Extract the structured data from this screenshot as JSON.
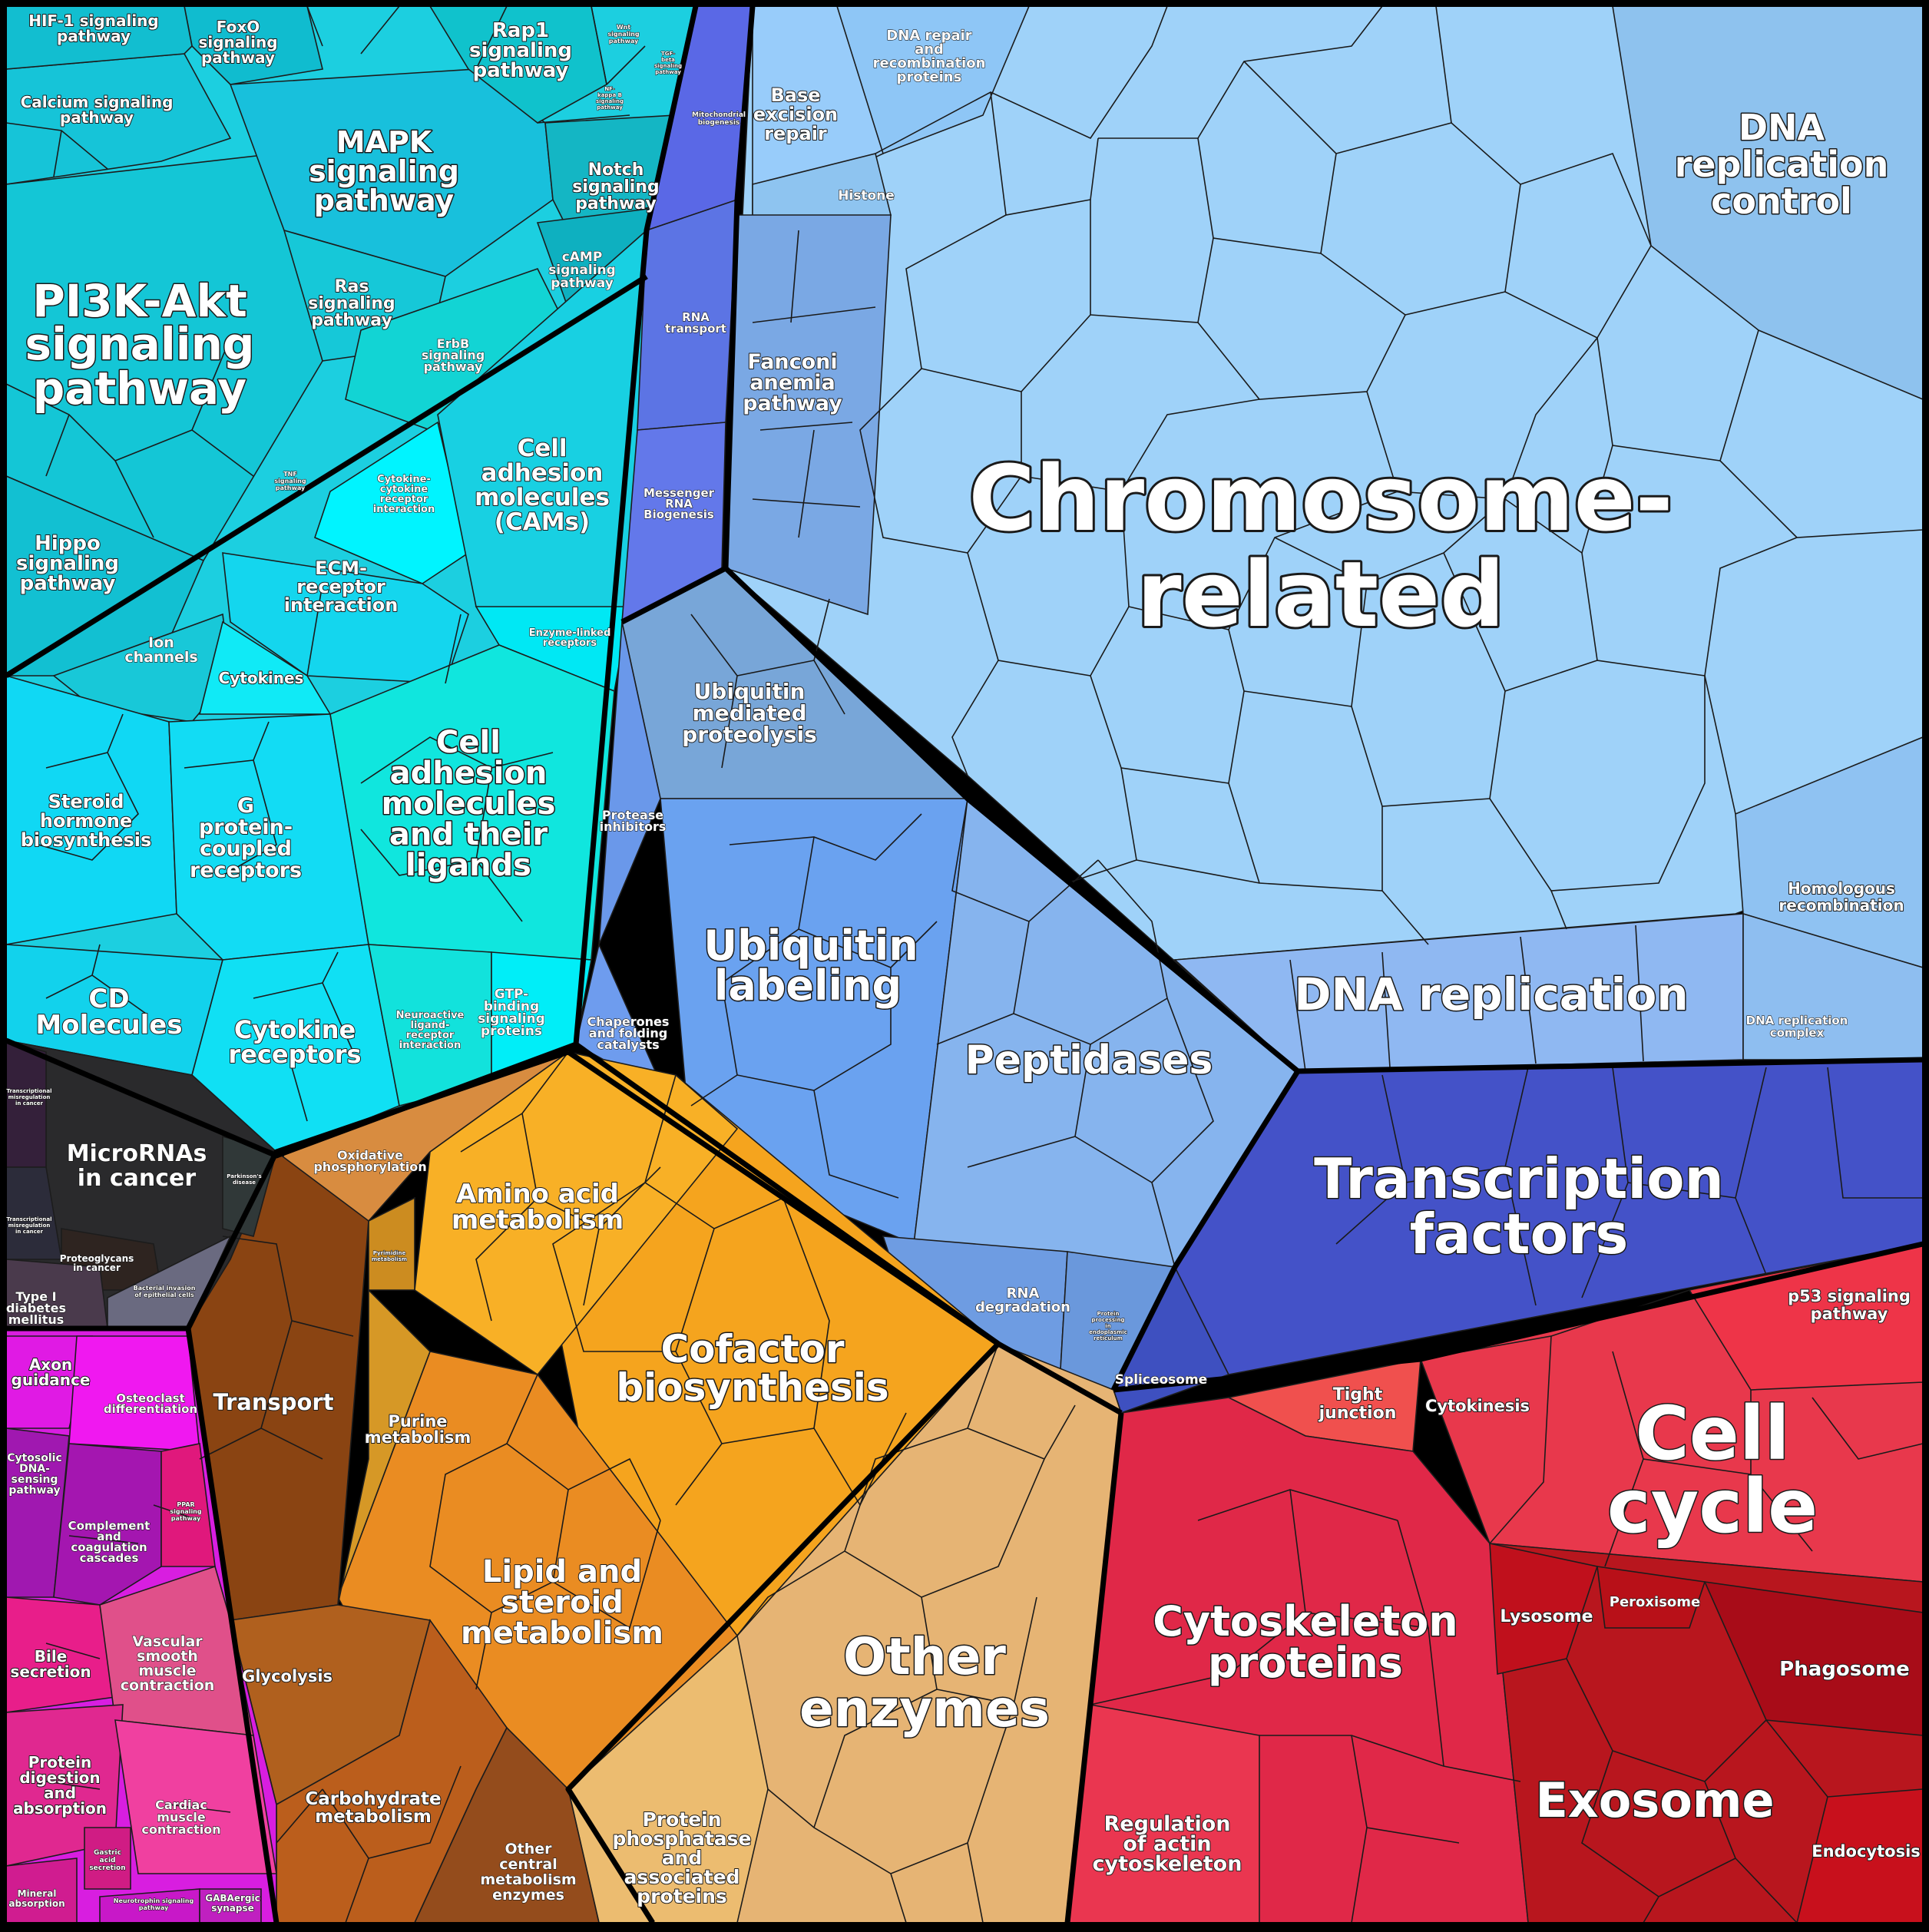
{
  "colors": {
    "signaling": "#1fc8dc",
    "chromosome": "#9dcff8",
    "ubiquitin": "#6aa0ee",
    "ubiquitin_mediated": "#7aa8d8",
    "peptidases": "#86b4f0",
    "small_blue": "#5f7fe8",
    "rna_blue": "#5a6fe8",
    "transcription": "#4450c8",
    "cell_cycle": "#e8384c",
    "cytoskeleton": "#e02a48",
    "exosome": "#b8141c",
    "other_enzymes": "#e6b470",
    "cofactor": "#f5a41e",
    "amino": "#f8b428",
    "lipid": "#ea8e22",
    "purine": "#d69a26",
    "transport": "#8a4210",
    "carbohydrate": "#b85c1e",
    "oxphos": "#d88c40",
    "microrna": "#2a2a2a",
    "magenta": "#e21ce8",
    "pink": "#e82890",
    "cam_green": "#10e0d8",
    "cytokine_cyan": "#10e8f8"
  },
  "labels": {
    "chromosome": "Chromosome-related",
    "chromosome_l1": "Chromosome-",
    "chromosome_l2": "related",
    "dna_rep_control_l1": "DNA",
    "dna_rep_control_l2": "replication",
    "dna_rep_control_l3": "control",
    "dna_replication": "DNA replication",
    "homologous_l1": "Homologous",
    "homologous_l2": "recombination",
    "dna_rep_complex_l1": "DNA replication",
    "dna_rep_complex_l2": "complex",
    "transcription_l1": "Transcription",
    "transcription_l2": "factors",
    "cell_cycle_l1": "Cell",
    "cell_cycle_l2": "cycle",
    "p53_l1": "p53 signaling",
    "p53_l2": "pathway",
    "cytokinesis": "Cytokinesis",
    "tight_l1": "Tight",
    "tight_l2": "junction",
    "cytoskeleton_l1": "Cytoskeleton",
    "cytoskeleton_l2": "proteins",
    "reg_actin_l1": "Regulation",
    "reg_actin_l2": "of actin",
    "reg_actin_l3": "cytoskeleton",
    "lysosome": "Lysosome",
    "peroxisome": "Peroxisome",
    "phagosome": "Phagosome",
    "exosome": "Exosome",
    "endocytosis": "Endocytosis",
    "spliceosome": "Spliceosome",
    "rna_degradation_l1": "RNA",
    "rna_degradation_l2": "degradation",
    "protein_proc_l1": "Protein",
    "protein_proc_l2": "processing",
    "protein_proc_l3": "in",
    "protein_proc_l4": "endoplasmic",
    "protein_proc_l5": "reticulum",
    "peptidases": "Peptidases",
    "ubiquitin_labeling_l1": "Ubiquitin",
    "ubiquitin_labeling_l2": "labeling",
    "ubiquitin_mediated_l1": "Ubiquitin",
    "ubiquitin_mediated_l2": "mediated",
    "ubiquitin_mediated_l3": "proteolysis",
    "protease_inh_l1": "Protease",
    "protease_inh_l2": "inhibitors",
    "chaperones_l1": "Chaperones",
    "chaperones_l2": "and folding",
    "chaperones_l3": "catalysts",
    "fanconi_l1": "Fanconi",
    "fanconi_l2": "anemia",
    "fanconi_l3": "pathway",
    "histone": "Histone",
    "base_excision_l1": "Base",
    "base_excision_l2": "excision",
    "base_excision_l3": "repair",
    "dna_repair_l1": "DNA repair",
    "dna_repair_l2": "and",
    "dna_repair_l3": "recombination",
    "dna_repair_l4": "proteins",
    "mito_l1": "Mitochondrial",
    "mito_l2": "biogenesis",
    "rna_transport_l1": "RNA",
    "rna_transport_l2": "transport",
    "messenger_l1": "Messenger",
    "messenger_l2": "RNA",
    "messenger_l3": "Biogenesis",
    "other_enzymes_l1": "Other",
    "other_enzymes_l2": "enzymes",
    "protein_phosphatase_l1": "Protein",
    "protein_phosphatase_l2": "phosphatase",
    "protein_phosphatase_l3": "and",
    "protein_phosphatase_l4": "associated",
    "protein_phosphatase_l5": "proteins",
    "cofactor_l1": "Cofactor",
    "cofactor_l2": "biosynthesis",
    "amino_l1": "Amino acid",
    "amino_l2": "metabolism",
    "lipid_l1": "Lipid and",
    "lipid_l2": "steroid",
    "lipid_l3": "metabolism",
    "purine_l1": "Purine",
    "purine_l2": "metabolism",
    "pyrimidine_l1": "Pyrimidine",
    "pyrimidine_l2": "metabolism",
    "oxphos_l1": "Oxidative",
    "oxphos_l2": "phosphorylation",
    "transport": "Transport",
    "glycolysis": "Glycolysis",
    "carbohydrate_l1": "Carbohydrate",
    "carbohydrate_l2": "metabolism",
    "other_central_l1": "Other",
    "other_central_l2": "central",
    "other_central_l3": "metabolism",
    "other_central_l4": "enzymes",
    "microrna_l1": "MicroRNAs",
    "microrna_l2": "in cancer",
    "transc_misreg_l1": "Transcriptional",
    "transc_misreg_l2": "misregulation",
    "transc_misreg_l3": "in cancer",
    "parkinsons_l1": "Parkinson's",
    "parkinsons_l2": "disease",
    "proteoglycans_l1": "Proteoglycans",
    "proteoglycans_l2": "in cancer",
    "type1_l1": "Type I",
    "type1_l2": "diabetes",
    "type1_l3": "mellitus",
    "bacterial_l1": "Bacterial invasion",
    "bacterial_l2": "of epithelial cells",
    "axon_l1": "Axon",
    "axon_l2": "guidance",
    "osteoclast_l1": "Osteoclast",
    "osteoclast_l2": "differentiation",
    "cytosolic_l1": "Cytosolic",
    "cytosolic_l2": "DNA-",
    "cytosolic_l3": "sensing",
    "cytosolic_l4": "pathway",
    "complement_l1": "Complement",
    "complement_l2": "and",
    "complement_l3": "coagulation",
    "complement_l4": "cascades",
    "ppar_l1": "PPAR",
    "ppar_l2": "signaling",
    "ppar_l3": "pathway",
    "bile_l1": "Bile",
    "bile_l2": "secretion",
    "vascular_l1": "Vascular",
    "vascular_l2": "smooth",
    "vascular_l3": "muscle",
    "vascular_l4": "contraction",
    "protein_digestion_l1": "Protein",
    "protein_digestion_l2": "digestion",
    "protein_digestion_l3": "and",
    "protein_digestion_l4": "absorption",
    "cardiac_l1": "Cardiac",
    "cardiac_l2": "muscle",
    "cardiac_l3": "contraction",
    "gastric_l1": "Gastric",
    "gastric_l2": "acid",
    "gastric_l3": "secretion",
    "mineral_l1": "Mineral",
    "mineral_l2": "absorption",
    "neurotrophin_l1": "Neurotrophin signaling",
    "neurotrophin_l2": "pathway",
    "gabaergic_l1": "GABAergic",
    "gabaergic_l2": "synapse",
    "hif1_l1": "HIF-1 signaling",
    "hif1_l2": "pathway",
    "foxo_l1": "FoxO",
    "foxo_l2": "signaling",
    "foxo_l3": "pathway",
    "rap1_l1": "Rap1",
    "rap1_l2": "signaling",
    "rap1_l3": "pathway",
    "wnt_l1": "Wnt",
    "wnt_l2": "signaling",
    "wnt_l3": "pathway",
    "tgf_l1": "TGF-",
    "tgf_l2": "beta",
    "tgf_l3": "signaling",
    "tgf_l4": "pathway",
    "nfkb_l1": "NF-",
    "nfkb_l2": "kappa B",
    "nfkb_l3": "signaling",
    "nfkb_l4": "pathway",
    "calcium_l1": "Calcium signaling",
    "calcium_l2": "pathway",
    "mapk_l1": "MAPK",
    "mapk_l2": "signaling",
    "mapk_l3": "pathway",
    "notch_l1": "Notch",
    "notch_l2": "signaling",
    "notch_l3": "pathway",
    "camp_l1": "cAMP",
    "camp_l2": "signaling",
    "camp_l3": "pathway",
    "pi3k_l1": "PI3K-Akt",
    "pi3k_l2": "signaling",
    "pi3k_l3": "pathway",
    "ras_l1": "Ras",
    "ras_l2": "signaling",
    "ras_l3": "pathway",
    "erbb_l1": "ErbB",
    "erbb_l2": "signaling",
    "erbb_l3": "pathway",
    "tnf_l1": "TNF",
    "tnf_l2": "signaling",
    "tnf_l3": "pathway",
    "hippo_l1": "Hippo",
    "hippo_l2": "signaling",
    "hippo_l3": "pathway",
    "cytokine_cytokine_l1": "Cytokine-",
    "cytokine_cytokine_l2": "cytokine",
    "cytokine_cytokine_l3": "receptor",
    "cytokine_cytokine_l4": "interaction",
    "cam_top_l1": "Cell",
    "cam_top_l2": "adhesion",
    "cam_top_l3": "molecules",
    "cam_top_l4": "(CAMs)",
    "ecm_l1": "ECM-",
    "ecm_l2": "receptor",
    "ecm_l3": "interaction",
    "ion_l1": "Ion",
    "ion_l2": "channels",
    "cytokines": "Cytokines",
    "enzyme_linked_l1": "Enzyme-linked",
    "enzyme_linked_l2": "receptors",
    "steroid_l1": "Steroid",
    "steroid_l2": "hormone",
    "steroid_l3": "biosynthesis",
    "gpcr_l1": "G",
    "gpcr_l2": "protein-",
    "gpcr_l3": "coupled",
    "gpcr_l4": "receptors",
    "cam_big_l1": "Cell",
    "cam_big_l2": "adhesion",
    "cam_big_l3": "molecules",
    "cam_big_l4": "and their",
    "cam_big_l5": "ligands",
    "cd_l1": "CD",
    "cd_l2": "Molecules",
    "cytokine_receptors_l1": "Cytokine",
    "cytokine_receptors_l2": "receptors",
    "neuroactive_l1": "Neuroactive",
    "neuroactive_l2": "ligand-",
    "neuroactive_l3": "receptor",
    "neuroactive_l4": "interaction",
    "gtp_l1": "GTP-",
    "gtp_l2": "binding",
    "gtp_l3": "signaling",
    "gtp_l4": "proteins"
  }
}
